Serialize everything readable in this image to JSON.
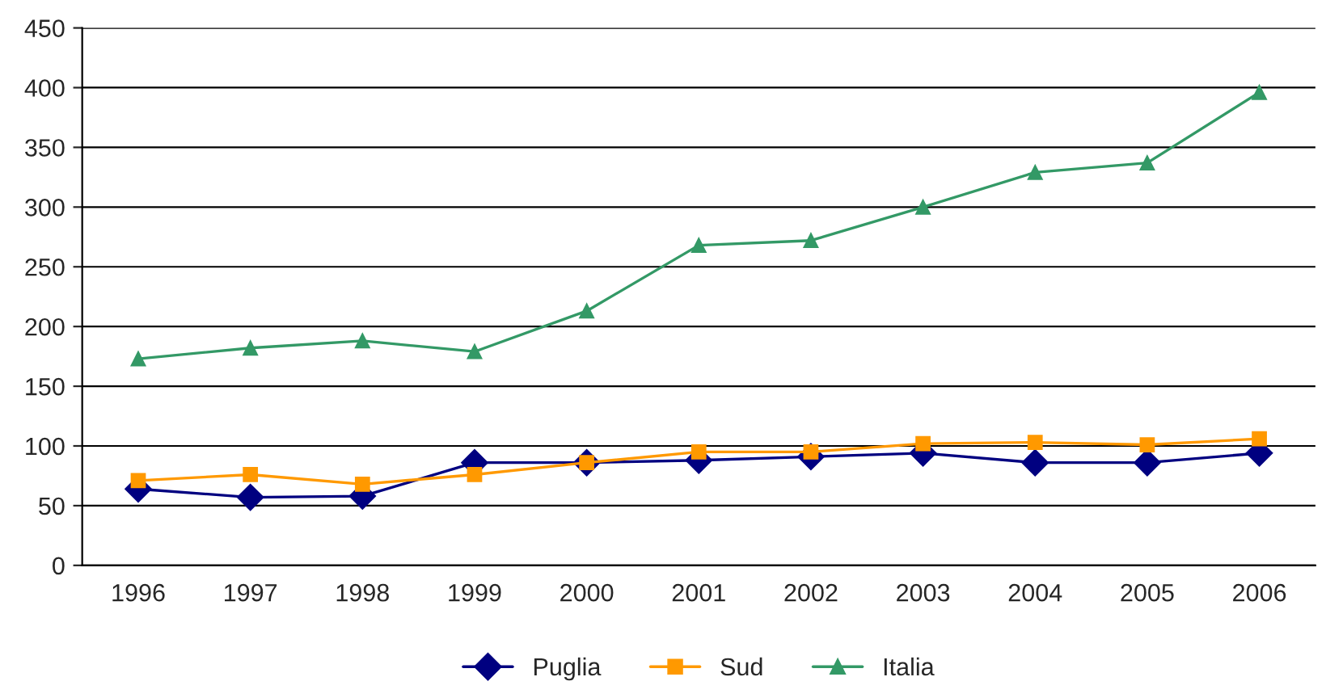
{
  "chart_data": {
    "type": "line",
    "categories": [
      "1996",
      "1997",
      "1998",
      "1999",
      "2000",
      "2001",
      "2002",
      "2003",
      "2004",
      "2005",
      "2006"
    ],
    "series": [
      {
        "name": "Puglia",
        "color": "#000080",
        "marker": "diamond",
        "values": [
          64,
          57,
          58,
          86,
          86,
          88,
          91,
          94,
          86,
          86,
          94
        ]
      },
      {
        "name": "Sud",
        "color": "#ff9900",
        "marker": "square",
        "values": [
          71,
          76,
          68,
          76,
          86,
          95,
          95,
          102,
          103,
          101,
          106
        ]
      },
      {
        "name": "Italia",
        "color": "#339966",
        "marker": "triangle",
        "values": [
          173,
          182,
          188,
          179,
          213,
          268,
          272,
          300,
          329,
          337,
          396
        ]
      }
    ],
    "ylim": [
      0,
      450
    ],
    "yticks": [
      0,
      50,
      100,
      150,
      200,
      250,
      300,
      350,
      400,
      450
    ],
    "grid": "y",
    "legend": "bottom"
  }
}
